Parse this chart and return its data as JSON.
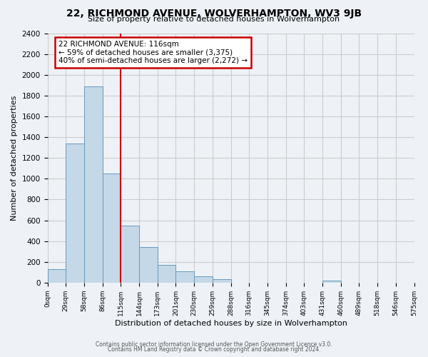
{
  "title": "22, RICHMOND AVENUE, WOLVERHAMPTON, WV3 9JB",
  "subtitle": "Size of property relative to detached houses in Wolverhampton",
  "xlabel": "Distribution of detached houses by size in Wolverhampton",
  "ylabel": "Number of detached properties",
  "footer_lines": [
    "Contains HM Land Registry data © Crown copyright and database right 2024.",
    "Contains public sector information licensed under the Open Government Licence v3.0."
  ],
  "bin_labels": [
    "0sqm",
    "29sqm",
    "58sqm",
    "86sqm",
    "115sqm",
    "144sqm",
    "173sqm",
    "201sqm",
    "230sqm",
    "259sqm",
    "288sqm",
    "316sqm",
    "345sqm",
    "374sqm",
    "403sqm",
    "431sqm",
    "460sqm",
    "489sqm",
    "518sqm",
    "546sqm",
    "575sqm"
  ],
  "bar_heights": [
    130,
    1340,
    1890,
    1050,
    550,
    340,
    170,
    110,
    60,
    30,
    0,
    0,
    0,
    0,
    0,
    20,
    0,
    0,
    0,
    0
  ],
  "bar_color": "#c5d8e8",
  "bar_edge_color": "#6699bb",
  "property_bin_index": 4,
  "vline_color": "#cc0000",
  "annotation_title": "22 RICHMOND AVENUE: 116sqm",
  "annotation_line1": "← 59% of detached houses are smaller (3,375)",
  "annotation_line2": "40% of semi-detached houses are larger (2,272) →",
  "annotation_box_color": "#ffffff",
  "annotation_box_edge": "#cc0000",
  "ylim": [
    0,
    2400
  ],
  "yticks": [
    0,
    200,
    400,
    600,
    800,
    1000,
    1200,
    1400,
    1600,
    1800,
    2000,
    2200,
    2400
  ],
  "grid_color": "#cccccc",
  "bg_color": "#eef2f7"
}
